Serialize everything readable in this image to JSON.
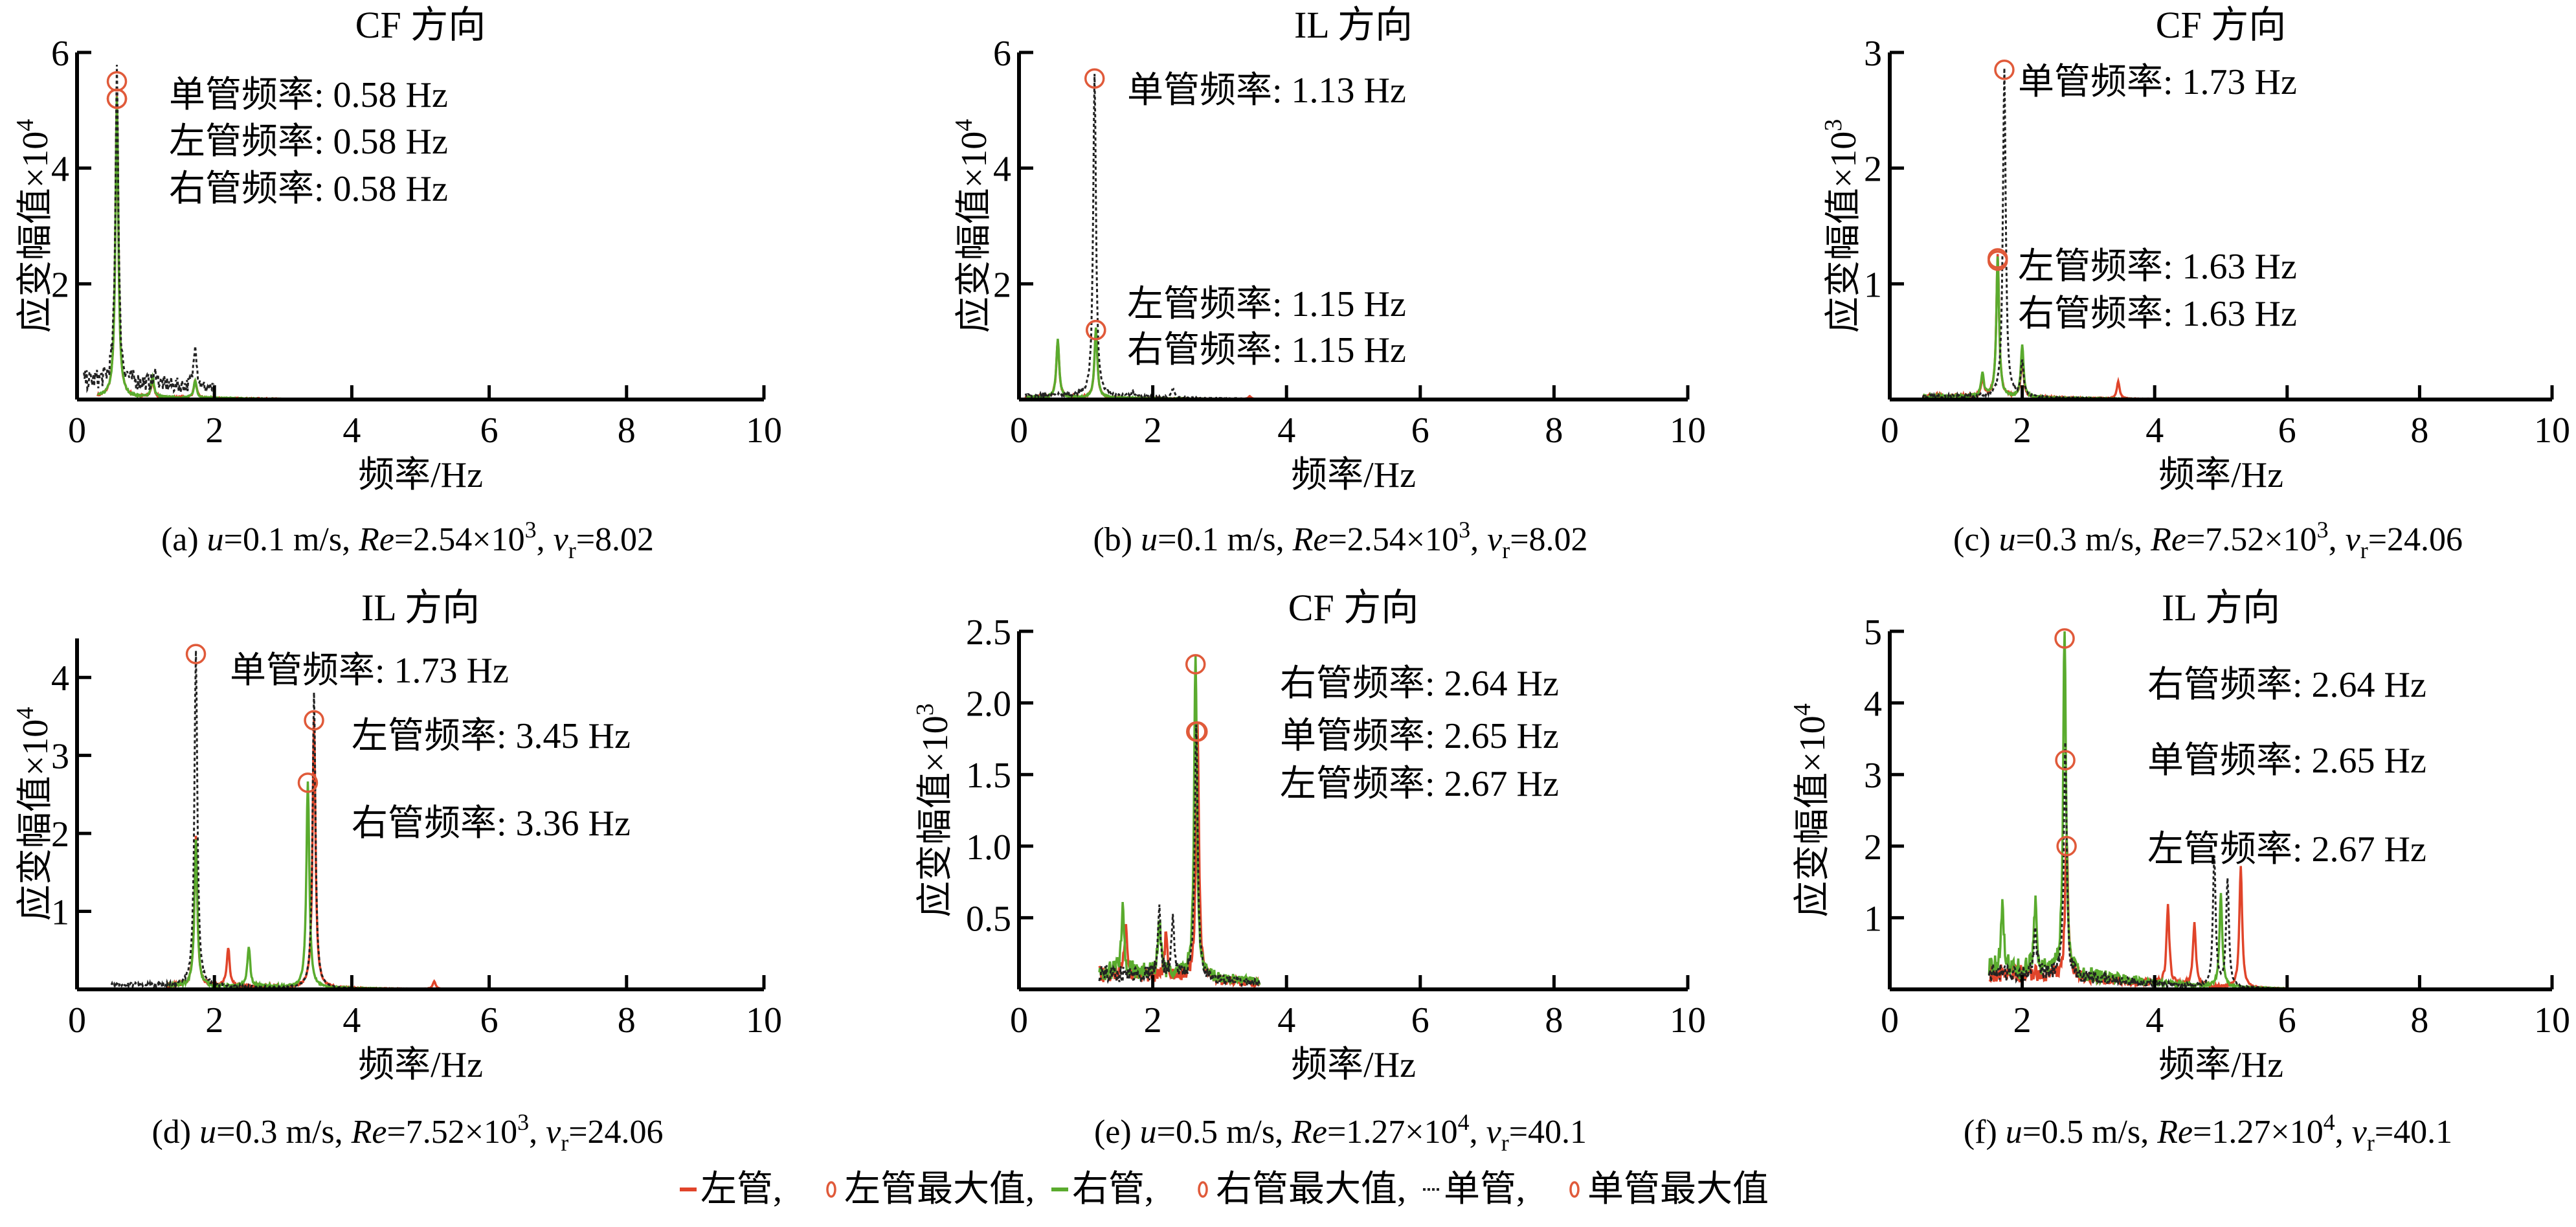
{
  "colors": {
    "left": "#e0442a",
    "right": "#5aab2e",
    "single": "#222222",
    "marker": "#e05a3a"
  },
  "legend": [
    {
      "type": "line",
      "color_key": "left",
      "label": "左管,"
    },
    {
      "type": "marker",
      "label": "左管最大值,"
    },
    {
      "type": "line",
      "color_key": "right",
      "label": "右管,"
    },
    {
      "type": "marker",
      "label": "右管最大值,"
    },
    {
      "type": "dotted",
      "color_key": "single",
      "label": "单管,"
    },
    {
      "type": "marker",
      "label": "单管最大值"
    }
  ],
  "chart_data": [
    {
      "type": "line",
      "title": "CF 方向",
      "xlabel": "频率/Hz",
      "ylabel": "应变幅值×10",
      "ylabel_exp": "4",
      "xlim": [
        0,
        10
      ],
      "ylim": [
        0,
        6
      ],
      "xticks": [
        0,
        2,
        4,
        6,
        8,
        10
      ],
      "yticks": [
        2,
        4,
        6
      ],
      "ytick_labels": [
        "2",
        "4",
        "6"
      ],
      "caption": {
        "label": "(a)",
        "u": "0.1 m/s",
        "re": "2.54×10",
        "re_exp": "3",
        "vr": "8.02"
      },
      "series": [
        {
          "name": "单管",
          "key": "single",
          "range": [
            0.1,
            2.0
          ],
          "peaks": [
            [
              0.58,
              5.5
            ],
            [
              1.72,
              0.8
            ],
            [
              1.15,
              0.2
            ]
          ],
          "base": 0.35
        },
        {
          "name": "左管",
          "key": "left",
          "range": [
            0.3,
            3.0
          ],
          "peaks": [
            [
              0.58,
              5.2
            ],
            [
              1.1,
              0.3
            ],
            [
              1.72,
              0.3
            ]
          ],
          "base": 0.04
        },
        {
          "name": "右管",
          "key": "right",
          "range": [
            0.3,
            3.0
          ],
          "peaks": [
            [
              0.58,
              5.2
            ],
            [
              1.1,
              0.35
            ],
            [
              1.72,
              0.3
            ]
          ],
          "base": 0.04
        }
      ],
      "maxima": [
        {
          "key": "single",
          "x": 0.58,
          "y": 5.5
        },
        {
          "key": "left",
          "x": 0.58,
          "y": 5.2
        },
        {
          "key": "right",
          "x": 0.58,
          "y": 5.2
        }
      ],
      "annotations": [
        "单管频率: 0.58 Hz",
        "左管频率: 0.58 Hz",
        "右管频率: 0.58 Hz"
      ]
    },
    {
      "type": "line",
      "title": "IL 方向",
      "xlabel": "频率/Hz",
      "ylabel": "应变幅值×10",
      "ylabel_exp": "4",
      "xlim": [
        0,
        10
      ],
      "ylim": [
        0,
        6
      ],
      "xticks": [
        0,
        2,
        4,
        6,
        8,
        10
      ],
      "yticks": [
        2,
        4,
        6
      ],
      "ytick_labels": [
        "2",
        "4",
        "6"
      ],
      "caption": {
        "label": "(b)",
        "u": "0.1 m/s",
        "re": "2.54×10",
        "re_exp": "3",
        "vr": "8.02"
      },
      "series": [
        {
          "name": "单管",
          "key": "single",
          "range": [
            0.1,
            10
          ],
          "peaks": [
            [
              1.13,
              5.55
            ],
            [
              2.3,
              0.15
            ],
            [
              1.7,
              0.1
            ]
          ],
          "base": 0.08
        },
        {
          "name": "左管",
          "key": "left",
          "range": [
            0.1,
            10
          ],
          "peaks": [
            [
              0.58,
              1.0
            ],
            [
              1.15,
              1.2
            ],
            [
              3.45,
              0.05
            ]
          ],
          "base": 0.04
        },
        {
          "name": "右管",
          "key": "right",
          "range": [
            0.1,
            10
          ],
          "peaks": [
            [
              0.58,
              1.0
            ],
            [
              1.15,
              1.2
            ]
          ],
          "base": 0.04
        }
      ],
      "maxima": [
        {
          "key": "single",
          "x": 1.13,
          "y": 5.55
        },
        {
          "key": "left",
          "x": 1.15,
          "y": 1.2
        },
        {
          "key": "right",
          "x": 1.15,
          "y": 1.2
        }
      ],
      "annotations": [
        "单管频率: 1.13 Hz",
        "左管频率: 1.15 Hz",
        "右管频率: 1.15 Hz"
      ]
    },
    {
      "type": "line",
      "title": "CF 方向",
      "xlabel": "频率/Hz",
      "ylabel": "应变幅值×10",
      "ylabel_exp": "3",
      "xlim": [
        0,
        10
      ],
      "ylim": [
        0,
        3
      ],
      "xticks": [
        0,
        2,
        4,
        6,
        8,
        10
      ],
      "yticks": [
        1,
        2,
        3
      ],
      "ytick_labels": [
        "1",
        "2",
        "3"
      ],
      "caption": {
        "label": "(c)",
        "u": "0.3 m/s",
        "re": "7.52×10",
        "re_exp": "3",
        "vr": "24.06"
      },
      "series": [
        {
          "name": "单管",
          "key": "single",
          "range": [
            0.5,
            10
          ],
          "peaks": [
            [
              1.73,
              2.85
            ],
            [
              2.0,
              0.3
            ]
          ],
          "base": 0.03
        },
        {
          "name": "左管",
          "key": "left",
          "range": [
            0.5,
            10
          ],
          "peaks": [
            [
              1.63,
              1.22
            ],
            [
              2.0,
              0.35
            ],
            [
              3.45,
              0.15
            ],
            [
              1.4,
              0.15
            ]
          ],
          "base": 0.03
        },
        {
          "name": "右管",
          "key": "right",
          "range": [
            0.5,
            10
          ],
          "peaks": [
            [
              1.63,
              1.2
            ],
            [
              2.0,
              0.45
            ],
            [
              1.4,
              0.2
            ]
          ],
          "base": 0.03
        }
      ],
      "maxima": [
        {
          "key": "single",
          "x": 1.73,
          "y": 2.85
        },
        {
          "key": "left",
          "x": 1.63,
          "y": 1.22
        },
        {
          "key": "right",
          "x": 1.63,
          "y": 1.2
        }
      ],
      "annotations": [
        "单管频率: 1.73 Hz",
        "左管频率: 1.63 Hz",
        "右管频率: 1.63 Hz"
      ]
    },
    {
      "type": "line",
      "title": "IL 方向",
      "xlabel": "频率/Hz",
      "ylabel": "应变幅值×10",
      "ylabel_exp": "4",
      "xlim": [
        0,
        10
      ],
      "ylim": [
        0,
        4.5
      ],
      "xticks": [
        0,
        2,
        4,
        6,
        8,
        10
      ],
      "yticks": [
        1,
        2,
        3,
        4
      ],
      "ytick_labels": [
        "1",
        "2",
        "3",
        "4"
      ],
      "caption": {
        "label": "(d)",
        "u": "0.3 m/s",
        "re": "7.52×10",
        "re_exp": "3",
        "vr": "24.06"
      },
      "series": [
        {
          "name": "单管",
          "key": "single",
          "range": [
            0.5,
            6
          ],
          "peaks": [
            [
              1.73,
              4.3
            ],
            [
              3.45,
              3.8
            ]
          ],
          "base": 0.06
        },
        {
          "name": "左管",
          "key": "left",
          "range": [
            1.3,
            6
          ],
          "peaks": [
            [
              1.73,
              1.9
            ],
            [
              3.45,
              3.45
            ],
            [
              2.2,
              0.5
            ],
            [
              5.2,
              0.1
            ]
          ],
          "base": 0.05
        },
        {
          "name": "右管",
          "key": "right",
          "range": [
            1.3,
            6
          ],
          "peaks": [
            [
              1.73,
              1.9
            ],
            [
              3.36,
              2.65
            ],
            [
              2.5,
              0.5
            ]
          ],
          "base": 0.05
        }
      ],
      "maxima": [
        {
          "key": "single",
          "x": 1.73,
          "y": 4.3
        },
        {
          "key": "left",
          "x": 3.45,
          "y": 3.45
        },
        {
          "key": "right",
          "x": 3.36,
          "y": 2.65
        }
      ],
      "annotations": [
        "单管频率: 1.73 Hz",
        "左管频率: 3.45 Hz",
        "右管频率: 3.36 Hz"
      ]
    },
    {
      "type": "line",
      "title": "CF 方向",
      "xlabel": "频率/Hz",
      "ylabel": "应变幅值×10",
      "ylabel_exp": "3",
      "xlim": [
        0,
        10
      ],
      "ylim": [
        0,
        2.5
      ],
      "xticks": [
        0,
        2,
        4,
        6,
        8,
        10
      ],
      "yticks": [
        0.5,
        1.0,
        1.5,
        2.0,
        2.5
      ],
      "ytick_labels": [
        "0.5",
        "1.0",
        "1.5",
        "2.0",
        "2.5"
      ],
      "caption": {
        "label": "(e)",
        "u": "0.5 m/s",
        "re": "1.27×10",
        "re_exp": "4",
        "vr": "40.1"
      },
      "series": [
        {
          "name": "单管",
          "key": "single",
          "range": [
            1.2,
            3.6
          ],
          "peaks": [
            [
              2.65,
              1.8
            ],
            [
              2.1,
              0.45
            ],
            [
              2.3,
              0.4
            ]
          ],
          "base": 0.12
        },
        {
          "name": "左管",
          "key": "left",
          "range": [
            1.2,
            3.6
          ],
          "peaks": [
            [
              2.67,
              1.8
            ],
            [
              1.6,
              0.35
            ],
            [
              2.2,
              0.3
            ]
          ],
          "base": 0.12
        },
        {
          "name": "右管",
          "key": "right",
          "range": [
            1.2,
            3.6
          ],
          "peaks": [
            [
              2.64,
              2.27
            ],
            [
              1.55,
              0.45
            ],
            [
              2.1,
              0.4
            ]
          ],
          "base": 0.14
        }
      ],
      "maxima": [
        {
          "key": "right",
          "x": 2.64,
          "y": 2.27
        },
        {
          "key": "single",
          "x": 2.65,
          "y": 1.8
        },
        {
          "key": "left",
          "x": 2.67,
          "y": 1.8
        }
      ],
      "annotations": [
        "右管频率: 2.64 Hz",
        "单管频率: 2.65 Hz",
        "左管频率: 2.67 Hz"
      ]
    },
    {
      "type": "line",
      "title": "IL 方向",
      "xlabel": "频率/Hz",
      "ylabel": "应变幅值×10",
      "ylabel_exp": "4",
      "xlim": [
        0,
        10
      ],
      "ylim": [
        0,
        5
      ],
      "xticks": [
        0,
        2,
        4,
        6,
        8,
        10
      ],
      "yticks": [
        1,
        2,
        3,
        4,
        5
      ],
      "ytick_labels": [
        "1",
        "2",
        "3",
        "4",
        "5"
      ],
      "caption": {
        "label": "(f)",
        "u": "0.5 m/s",
        "re": "1.27×10",
        "re_exp": "4",
        "vr": "40.1"
      },
      "series": [
        {
          "name": "单管",
          "key": "single",
          "range": [
            1.5,
            6
          ],
          "peaks": [
            [
              2.65,
              3.2
            ],
            [
              4.9,
              1.8
            ],
            [
              5.1,
              1.5
            ],
            [
              2.2,
              0.6
            ]
          ],
          "base": 0.25
        },
        {
          "name": "左管",
          "key": "left",
          "range": [
            1.5,
            6
          ],
          "peaks": [
            [
              2.67,
              2.0
            ],
            [
              4.2,
              1.1
            ],
            [
              5.3,
              1.7
            ],
            [
              4.6,
              0.9
            ]
          ],
          "base": 0.25
        },
        {
          "name": "右管",
          "key": "right",
          "range": [
            1.5,
            6
          ],
          "peaks": [
            [
              2.64,
              4.9
            ],
            [
              1.7,
              1.0
            ],
            [
              2.2,
              1.0
            ],
            [
              5.0,
              1.3
            ]
          ],
          "base": 0.3
        }
      ],
      "maxima": [
        {
          "key": "right",
          "x": 2.64,
          "y": 4.9
        },
        {
          "key": "single",
          "x": 2.65,
          "y": 3.2
        },
        {
          "key": "left",
          "x": 2.67,
          "y": 2.0
        }
      ],
      "annotations": [
        "右管频率: 2.64 Hz",
        "单管频率: 2.65 Hz",
        "左管频率: 2.67 Hz"
      ]
    }
  ]
}
